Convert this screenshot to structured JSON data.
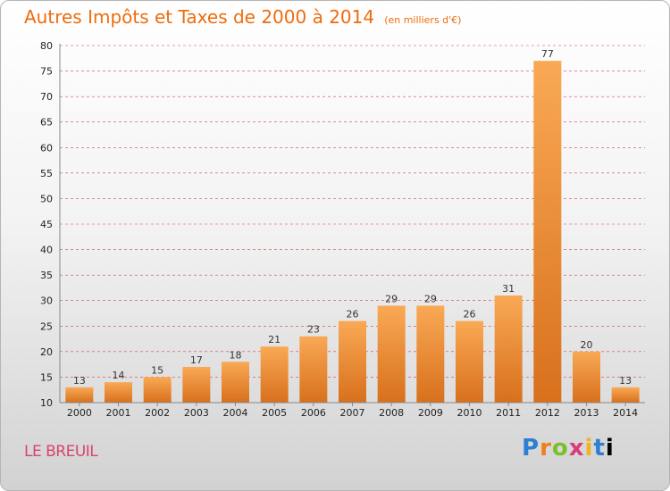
{
  "chart_data": {
    "type": "bar",
    "title": "Autres Impôts et Taxes de 2000 à 2014",
    "subtitle": "(en milliers d'€)",
    "categories": [
      "2000",
      "2001",
      "2002",
      "2003",
      "2004",
      "2005",
      "2006",
      "2007",
      "2008",
      "2009",
      "2010",
      "2011",
      "2012",
      "2013",
      "2014"
    ],
    "values": [
      13,
      14,
      15,
      17,
      18,
      21,
      23,
      26,
      29,
      29,
      26,
      31,
      77,
      20,
      13
    ],
    "ylim": [
      10,
      80
    ],
    "yticks": [
      10,
      15,
      20,
      25,
      30,
      35,
      40,
      45,
      50,
      55,
      60,
      65,
      70,
      75,
      80
    ],
    "grid": true,
    "colors": {
      "bar_light": "#f9a955",
      "bar_dark": "#d8701c",
      "grid": "#e04040",
      "title": "#ee6c0c"
    }
  },
  "footer": {
    "commune": "LE BREUIL",
    "logo_letters": [
      "P",
      "r",
      "o",
      "x",
      "i",
      "t",
      "i"
    ]
  }
}
